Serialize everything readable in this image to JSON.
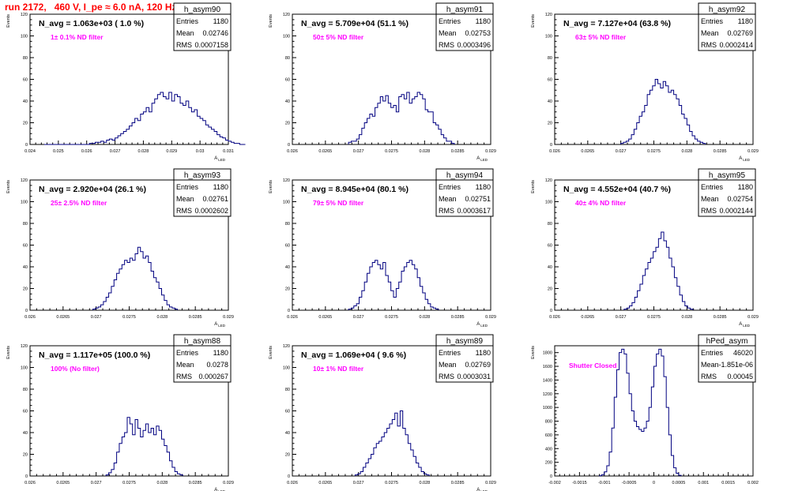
{
  "page_title": "run 2172,   460 V, I_pe ≈ 6.0 nA, 120 Hz",
  "colors": {
    "histogram_line": "#000080",
    "annotation_magenta": "#ff00ff",
    "title_red": "#ff0000",
    "axis": "#000000"
  },
  "chart_data": [
    {
      "type": "bar",
      "name": "h_asym90",
      "ylabel": "Events",
      "xlabel": "A_{LED}",
      "xlim": [
        0.024,
        0.031
      ],
      "ylim": [
        0,
        120
      ],
      "xticks": [
        "0.024",
        "0.025",
        "0.026",
        "0.027",
        "0.028",
        "0.029",
        "0.03",
        "0.031"
      ],
      "yticks": [
        "0",
        "20",
        "40",
        "60",
        "80",
        "100",
        "120"
      ],
      "stats": {
        "Entries": "1180",
        "Mean": "0.02746",
        "RMS": "0.0007158"
      },
      "navg": "N_avg = 1.063e+03 ( 1.0 %)",
      "annotation": "1± 0.1% ND filter",
      "bins": {
        "x0": 0.0245,
        "dx": 0.0001,
        "values": [
          0,
          0,
          0,
          0,
          0,
          0,
          0,
          0,
          0,
          0,
          0,
          0,
          0,
          0,
          0,
          0,
          1,
          1,
          2,
          2,
          3,
          2,
          4,
          5,
          4,
          6,
          8,
          10,
          12,
          14,
          17,
          20,
          24,
          22,
          28,
          30,
          34,
          30,
          38,
          42,
          46,
          48,
          44,
          42,
          48,
          40,
          46,
          44,
          38,
          36,
          40,
          34,
          30,
          32,
          26,
          24,
          22,
          18,
          16,
          14,
          12,
          9,
          7,
          6,
          4,
          3,
          2,
          1,
          1,
          0,
          0
        ]
      }
    },
    {
      "type": "bar",
      "name": "h_asym91",
      "ylabel": "Events",
      "xlabel": "A_{LED}",
      "xlim": [
        0.026,
        0.029
      ],
      "ylim": [
        0,
        120
      ],
      "xticks": [
        "0.026",
        "0.0265",
        "0.027",
        "0.0275",
        "0.028",
        "0.0285",
        "0.029"
      ],
      "yticks": [
        "0",
        "20",
        "40",
        "60",
        "80",
        "100",
        "120"
      ],
      "stats": {
        "Entries": "1180",
        "Mean": "0.02753",
        "RMS": "0.0003496"
      },
      "navg": "N_avg = 5.709e+04 (51.1 %)",
      "annotation": "50± 5% ND filter",
      "bins": {
        "x0": 0.02685,
        "dx": 4e-05,
        "values": [
          2,
          3,
          3,
          5,
          9,
          15,
          20,
          24,
          28,
          26,
          34,
          38,
          44,
          40,
          45,
          38,
          34,
          36,
          30,
          44,
          46,
          42,
          48,
          38,
          42,
          44,
          48,
          46,
          42,
          32,
          30,
          30,
          20,
          18,
          14,
          9,
          6,
          3,
          3,
          1
        ]
      }
    },
    {
      "type": "bar",
      "name": "h_asym92",
      "ylabel": "Events",
      "xlabel": "A_{LED}",
      "xlim": [
        0.026,
        0.029
      ],
      "ylim": [
        0,
        120
      ],
      "xticks": [
        "0.026",
        "0.0265",
        "0.027",
        "0.0275",
        "0.028",
        "0.0285",
        "0.029"
      ],
      "yticks": [
        "0",
        "20",
        "40",
        "60",
        "80",
        "100",
        "120"
      ],
      "stats": {
        "Entries": "1180",
        "Mean": "0.02769",
        "RMS": "0.0002414"
      },
      "navg": "N_avg = 7.127e+04 (63.8 %)",
      "annotation": "63± 5% ND filter",
      "bins": {
        "x0": 0.027,
        "dx": 4e-05,
        "values": [
          1,
          2,
          3,
          5,
          9,
          14,
          20,
          26,
          30,
          36,
          46,
          50,
          54,
          60,
          56,
          52,
          58,
          54,
          48,
          50,
          46,
          42,
          36,
          28,
          24,
          18,
          12,
          8,
          5,
          3,
          2,
          1
        ]
      }
    },
    {
      "type": "bar",
      "name": "h_asym93",
      "ylabel": "Events",
      "xlabel": "A_{LED}",
      "xlim": [
        0.026,
        0.029
      ],
      "ylim": [
        0,
        120
      ],
      "xticks": [
        "0.026",
        "0.0265",
        "0.027",
        "0.0275",
        "0.028",
        "0.0285",
        "0.029"
      ],
      "yticks": [
        "0",
        "20",
        "40",
        "60",
        "80",
        "100",
        "120"
      ],
      "stats": {
        "Entries": "1180",
        "Mean": "0.02761",
        "RMS": "0.0002602"
      },
      "navg": "N_avg = 2.920e+04 (26.1 %)",
      "annotation": "25± 2.5% ND filter",
      "bins": {
        "x0": 0.02695,
        "dx": 4e-05,
        "values": [
          1,
          2,
          3,
          5,
          8,
          12,
          16,
          22,
          28,
          34,
          38,
          42,
          46,
          44,
          48,
          46,
          52,
          58,
          54,
          48,
          50,
          44,
          36,
          30,
          26,
          20,
          14,
          9,
          5,
          3,
          2,
          1
        ]
      }
    },
    {
      "type": "bar",
      "name": "h_asym94",
      "ylabel": "Events",
      "xlabel": "A_{LED}",
      "xlim": [
        0.026,
        0.029
      ],
      "ylim": [
        0,
        120
      ],
      "xticks": [
        "0.026",
        "0.0265",
        "0.027",
        "0.0275",
        "0.028",
        "0.0285",
        "0.029"
      ],
      "yticks": [
        "0",
        "20",
        "40",
        "60",
        "80",
        "100",
        "120"
      ],
      "stats": {
        "Entries": "1180",
        "Mean": "0.02751",
        "RMS": "0.0003617"
      },
      "navg": "N_avg = 8.945e+04 (80.1 %)",
      "annotation": "79± 5% ND filter",
      "bins": {
        "x0": 0.02685,
        "dx": 4e-05,
        "values": [
          1,
          2,
          4,
          6,
          12,
          18,
          26,
          34,
          40,
          44,
          46,
          42,
          38,
          44,
          32,
          26,
          18,
          12,
          20,
          26,
          36,
          40,
          44,
          46,
          42,
          38,
          30,
          22,
          16,
          10,
          6,
          3,
          2,
          1
        ]
      }
    },
    {
      "type": "bar",
      "name": "h_asym95",
      "ylabel": "Events",
      "xlabel": "A_{LED}",
      "xlim": [
        0.026,
        0.029
      ],
      "ylim": [
        0,
        120
      ],
      "xticks": [
        "0.026",
        "0.0265",
        "0.027",
        "0.0275",
        "0.028",
        "0.0285",
        "0.029"
      ],
      "yticks": [
        "0",
        "20",
        "40",
        "60",
        "80",
        "100",
        "120"
      ],
      "stats": {
        "Entries": "1180",
        "Mean": "0.02754",
        "RMS": "0.0002144"
      },
      "navg": "N_avg = 4.552e+04 (40.7 %)",
      "annotation": "40± 4% ND filter",
      "bins": {
        "x0": 0.02705,
        "dx": 4e-05,
        "values": [
          1,
          2,
          4,
          7,
          12,
          18,
          24,
          32,
          38,
          44,
          48,
          54,
          58,
          66,
          72,
          64,
          58,
          48,
          40,
          30,
          22,
          14,
          8,
          4,
          2,
          1
        ]
      }
    },
    {
      "type": "bar",
      "name": "h_asym88",
      "ylabel": "Events",
      "xlabel": "A_{LED}",
      "xlim": [
        0.026,
        0.029
      ],
      "ylim": [
        0,
        120
      ],
      "xticks": [
        "0.026",
        "0.0265",
        "0.027",
        "0.0275",
        "0.028",
        "0.0285",
        "0.029"
      ],
      "yticks": [
        "0",
        "20",
        "40",
        "60",
        "80",
        "100",
        "120"
      ],
      "stats": {
        "Entries": "1180",
        "Mean": "0.0278",
        "RMS": "0.000267"
      },
      "navg": "N_avg = 1.117e+05 (100.0 %)",
      "annotation": "100% (No filter)",
      "bins": {
        "x0": 0.02715,
        "dx": 4e-05,
        "values": [
          1,
          3,
          6,
          12,
          22,
          30,
          36,
          40,
          54,
          48,
          38,
          52,
          44,
          36,
          42,
          48,
          40,
          44,
          38,
          46,
          42,
          34,
          28,
          22,
          14,
          8,
          4,
          2,
          1
        ]
      }
    },
    {
      "type": "bar",
      "name": "h_asym89",
      "ylabel": "Events",
      "xlabel": "A_{LED}",
      "xlim": [
        0.026,
        0.029
      ],
      "ylim": [
        0,
        120
      ],
      "xticks": [
        "0.026",
        "0.0265",
        "0.027",
        "0.0275",
        "0.028",
        "0.0285",
        "0.029"
      ],
      "yticks": [
        "0",
        "20",
        "40",
        "60",
        "80",
        "100",
        "120"
      ],
      "stats": {
        "Entries": "1180",
        "Mean": "0.02769",
        "RMS": "0.0003031"
      },
      "navg": "N_avg = 1.069e+04 ( 9.6 %)",
      "annotation": "10± 1% ND filter",
      "bins": {
        "x0": 0.02695,
        "dx": 4e-05,
        "values": [
          1,
          2,
          4,
          8,
          12,
          16,
          20,
          26,
          30,
          32,
          36,
          40,
          44,
          48,
          52,
          58,
          46,
          60,
          44,
          38,
          30,
          24,
          18,
          12,
          8,
          4,
          2,
          1
        ]
      }
    },
    {
      "type": "bar",
      "name": "hPed_asym",
      "ylabel": "Events",
      "xlabel": "",
      "xlim": [
        -0.002,
        0.002
      ],
      "ylim": [
        0,
        1900
      ],
      "xticks": [
        "-0.002",
        "-0.0015",
        "-0.001",
        "-0.0005",
        "0",
        "0.0005",
        "0.001",
        "0.0015",
        "0.002"
      ],
      "yticks": [
        "0",
        "200",
        "400",
        "600",
        "800",
        "1000",
        "1200",
        "1400",
        "1600",
        "1800"
      ],
      "stats": {
        "Entries": "46020",
        "Mean": "-1.851e-06",
        "RMS": "0.00045"
      },
      "navg": "",
      "annotation": "Shutter Closed",
      "bins": {
        "x0": -0.0011,
        "dx": 5e-05,
        "values": [
          5,
          20,
          60,
          150,
          350,
          700,
          1150,
          1550,
          1800,
          1850,
          1780,
          1500,
          1200,
          950,
          800,
          720,
          680,
          650,
          700,
          800,
          1000,
          1300,
          1600,
          1780,
          1850,
          1750,
          1450,
          1000,
          600,
          300,
          120,
          40,
          10
        ]
      }
    }
  ]
}
